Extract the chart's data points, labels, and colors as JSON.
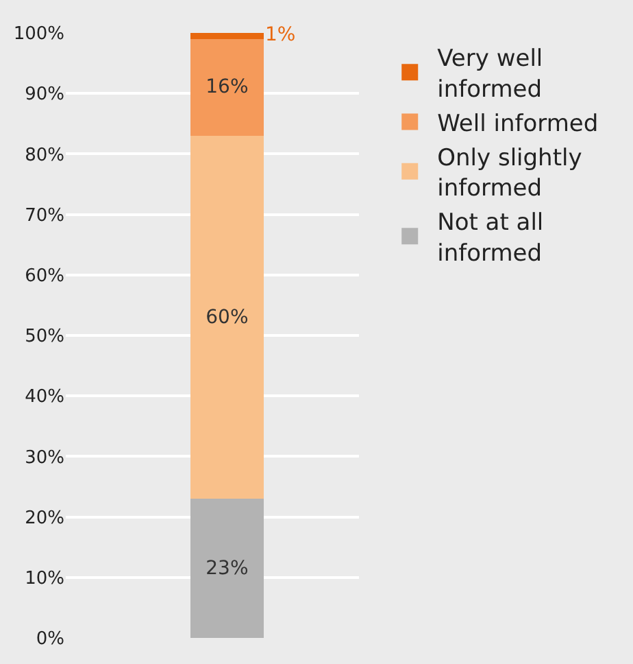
{
  "chart_data": {
    "type": "bar",
    "stacked": true,
    "categories": [
      null
    ],
    "series": [
      {
        "name": "Not at all informed",
        "color": "#b3b3b3",
        "values": [
          23
        ],
        "value_labels": [
          "23%"
        ]
      },
      {
        "name": "Only slightly informed",
        "color": "#f9c08a",
        "values": [
          60
        ],
        "value_labels": [
          "60%"
        ]
      },
      {
        "name": "Well informed",
        "color": "#f59a5a",
        "values": [
          16
        ],
        "value_labels": [
          "16%"
        ]
      },
      {
        "name": "Very well informed",
        "color": "#e8680f",
        "values": [
          1
        ],
        "value_labels": [
          "1%"
        ]
      }
    ],
    "ylim": [
      0,
      100
    ],
    "yticks": [
      {
        "value": 0,
        "label": "0%"
      },
      {
        "value": 10,
        "label": "10%"
      },
      {
        "value": 20,
        "label": "20%"
      },
      {
        "value": 30,
        "label": "30%"
      },
      {
        "value": 40,
        "label": "40%"
      },
      {
        "value": 50,
        "label": "50%"
      },
      {
        "value": 60,
        "label": "60%"
      },
      {
        "value": 70,
        "label": "70%"
      },
      {
        "value": 80,
        "label": "80%"
      },
      {
        "value": 90,
        "label": "90%"
      },
      {
        "value": 100,
        "label": "100%"
      }
    ],
    "grid": "y",
    "legend": "right"
  }
}
